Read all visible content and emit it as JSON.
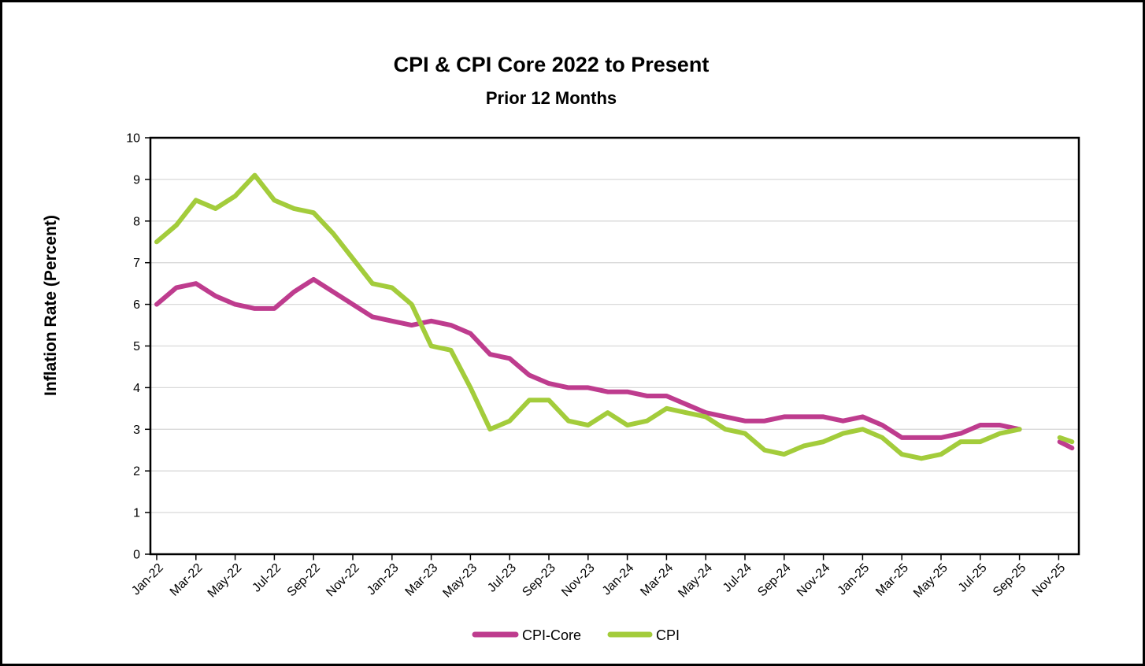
{
  "figure": {
    "background": "#FFFFFF",
    "border_color": "#000000"
  },
  "chart_data": {
    "type": "line",
    "title": "CPI & CPI Core  2022 to Present",
    "subtitle": "Prior 12 Months",
    "ylabel": "Inflation Rate (Percent)",
    "xlabel": "",
    "ylim": [
      0,
      10
    ],
    "y_tick_labels": [
      "0",
      "1",
      "2",
      "3",
      "4",
      "5",
      "6",
      "7",
      "8",
      "9",
      "10"
    ],
    "grid": "horizontal",
    "gridline_color": "#D9D9D9",
    "axis_color": "#000000",
    "x_tick_labels": [
      "Jan-22",
      "Mar-22",
      "May-22",
      "Jul-22",
      "Sep-22",
      "Nov-22",
      "Jan-23",
      "Mar-23",
      "May-23",
      "Jul-23",
      "Sep-23",
      "Nov-23",
      "Jan-24",
      "Mar-24",
      "May-24",
      "Jul-24",
      "Sep-24",
      "Nov-24",
      "Jan-25",
      "Mar-25",
      "May-25",
      "Jul-25",
      "Sep-25",
      "Nov-25"
    ],
    "x_months_total": 47,
    "legend": {
      "position": "bottom-center",
      "items": [
        "CPI-Core",
        "CPI"
      ]
    },
    "series": [
      {
        "name": "CPI-Core",
        "color": "#BE3C8E",
        "first_month": "Jan-22",
        "last_month": "Sep-25",
        "values": [
          6.0,
          6.4,
          6.5,
          6.2,
          6.0,
          5.9,
          5.9,
          6.3,
          6.6,
          6.3,
          6.0,
          5.7,
          5.6,
          5.5,
          5.6,
          5.5,
          5.3,
          4.8,
          4.7,
          4.3,
          4.1,
          4.0,
          4.0,
          3.9,
          3.9,
          3.8,
          3.8,
          3.6,
          3.4,
          3.3,
          3.2,
          3.2,
          3.3,
          3.3,
          3.3,
          3.2,
          3.3,
          3.1,
          2.8,
          2.8,
          2.8,
          2.9,
          3.1,
          3.1,
          3.0
        ]
      },
      {
        "name": "CPI",
        "color": "#A3CC3B",
        "first_month": "Jan-22",
        "last_month": "Sep-25",
        "values": [
          7.5,
          7.9,
          8.5,
          8.3,
          8.6,
          9.1,
          8.5,
          8.3,
          8.2,
          7.7,
          7.1,
          6.5,
          6.4,
          6.0,
          5.0,
          4.9,
          4.0,
          3.0,
          3.2,
          3.7,
          3.7,
          3.2,
          3.1,
          3.4,
          3.1,
          3.2,
          3.5,
          3.4,
          3.3,
          3.0,
          2.9,
          2.5,
          2.4,
          2.6,
          2.7,
          2.9,
          3.0,
          2.8,
          2.4,
          2.3,
          2.4,
          2.7,
          2.7,
          2.9,
          3.0
        ]
      }
    ],
    "gap_months": [
      "Oct-25"
    ],
    "trailing_partial_segment": {
      "description": "short detached segment near Nov-25 after the Oct-25 data gap",
      "month_index_range": [
        46.05,
        46.68
      ],
      "cpi_core": [
        2.7,
        2.55
      ],
      "cpi": [
        2.8,
        2.7
      ]
    }
  }
}
